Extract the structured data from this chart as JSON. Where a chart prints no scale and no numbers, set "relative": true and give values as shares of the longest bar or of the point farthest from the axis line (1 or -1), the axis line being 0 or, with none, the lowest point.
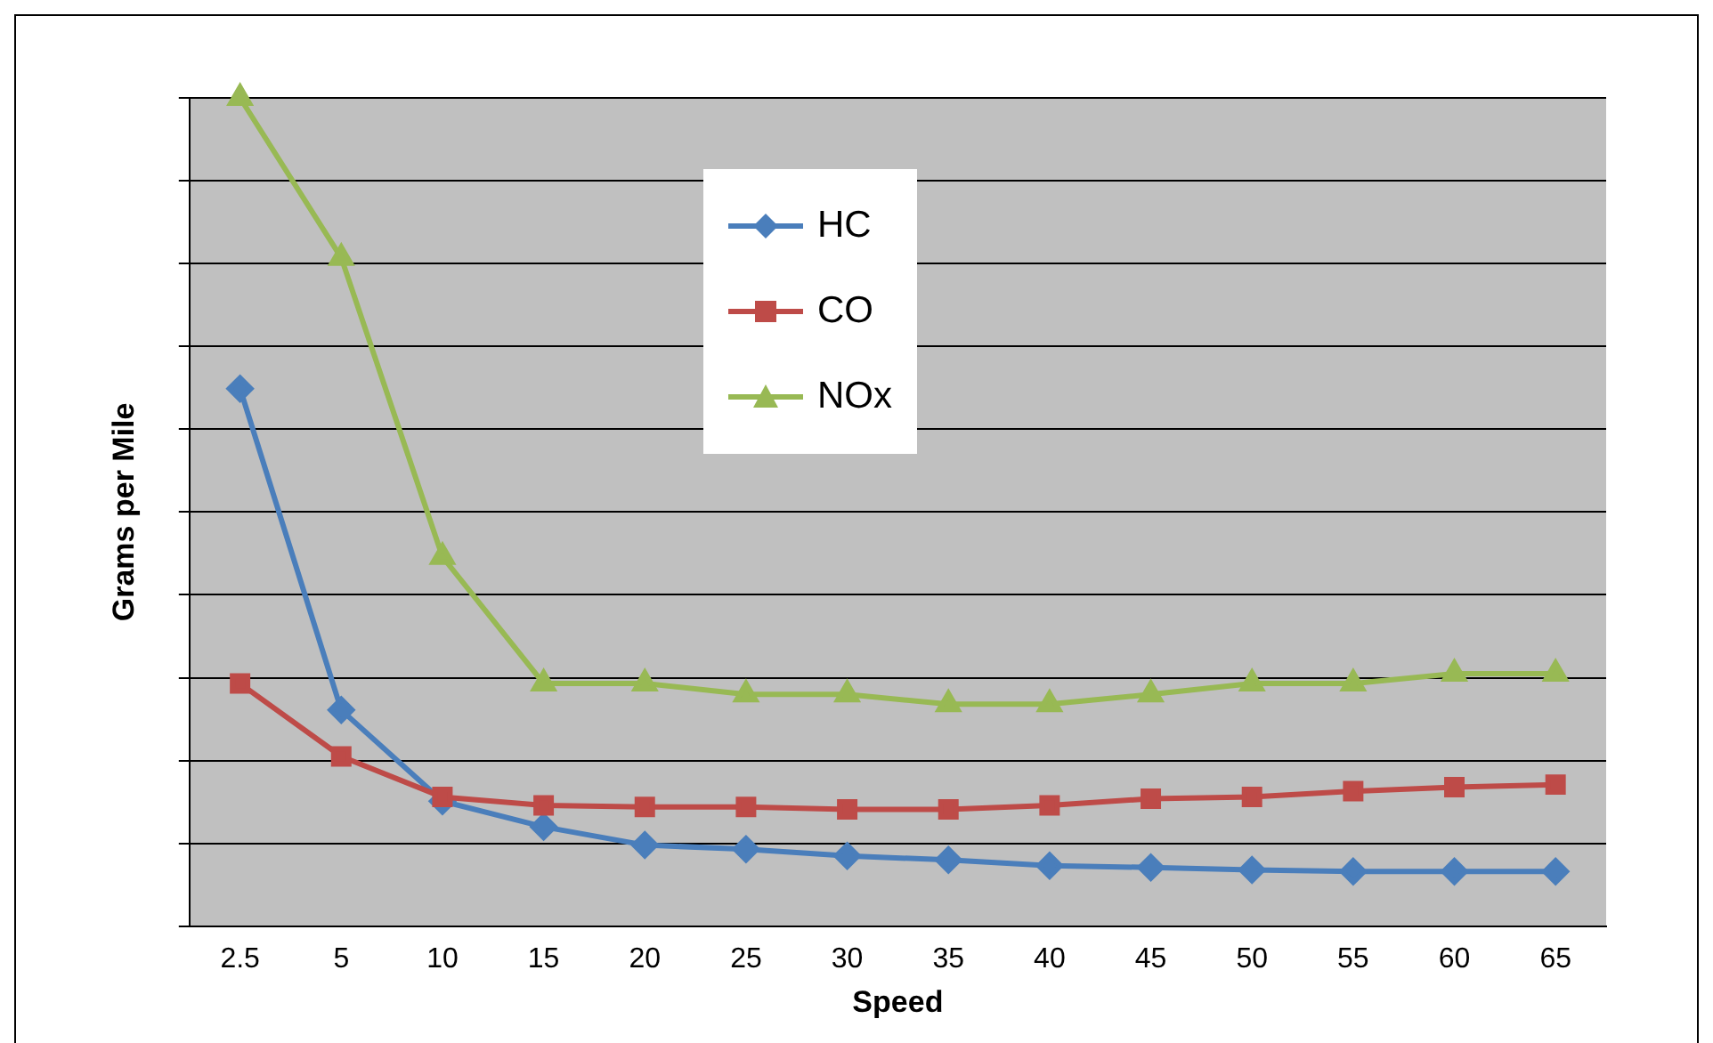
{
  "chart_data": {
    "type": "line",
    "xlabel": "Speed",
    "ylabel": "Grams per Mile",
    "relative": true,
    "grid": "y",
    "legend": "top",
    "categories": [
      "2.5",
      "5",
      "10",
      "15",
      "20",
      "25",
      "30",
      "35",
      "40",
      "45",
      "50",
      "55",
      "60",
      "65"
    ],
    "series": [
      {
        "name": "HC",
        "color": "#4a7ebb",
        "marker": "diamond",
        "values": [
          0.649,
          0.261,
          0.151,
          0.12,
          0.098,
          0.093,
          0.085,
          0.08,
          0.073,
          0.071,
          0.068,
          0.066,
          0.066,
          0.066
        ]
      },
      {
        "name": "CO",
        "color": "#be4b48",
        "marker": "square",
        "values": [
          0.293,
          0.205,
          0.156,
          0.146,
          0.144,
          0.144,
          0.141,
          0.141,
          0.146,
          0.154,
          0.156,
          0.163,
          0.168,
          0.171
        ]
      },
      {
        "name": "NOx",
        "color": "#98b954",
        "marker": "triangle",
        "values": [
          1,
          0.807,
          0.446,
          0.293,
          0.293,
          0.28,
          0.28,
          0.268,
          0.268,
          0.28,
          0.293,
          0.293,
          0.305,
          0.305
        ]
      }
    ]
  }
}
